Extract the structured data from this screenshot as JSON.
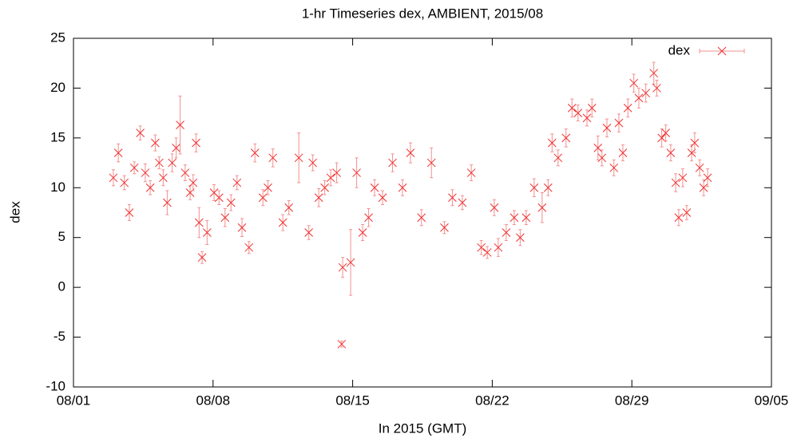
{
  "chart_data": {
    "type": "scatter",
    "title": "1-hr Timeseries dex, AMBIENT, 2015/08",
    "xlabel": "In 2015 (GMT)",
    "ylabel": "dex",
    "legend": "top-right",
    "xlim": [
      1,
      36
    ],
    "xticks": [
      {
        "value": 1,
        "label": "08/01"
      },
      {
        "value": 8,
        "label": "08/08"
      },
      {
        "value": 15,
        "label": "08/15"
      },
      {
        "value": 22,
        "label": "08/22"
      },
      {
        "value": 29,
        "label": "08/29"
      },
      {
        "value": 36,
        "label": "09/05"
      }
    ],
    "ylim": [
      -10,
      25
    ],
    "yticks": [
      -10,
      -5,
      0,
      5,
      10,
      15,
      20,
      25
    ],
    "series": [
      {
        "name": "dex",
        "color": "#f03030",
        "error_color": "#f39090",
        "x": [
          3.0,
          3.25,
          3.55,
          3.8,
          4.05,
          4.35,
          4.6,
          4.85,
          5.1,
          5.3,
          5.5,
          5.7,
          5.95,
          6.15,
          6.35,
          6.6,
          6.85,
          7.0,
          7.15,
          7.3,
          7.45,
          7.7,
          8.05,
          8.3,
          8.6,
          8.9,
          9.2,
          9.45,
          9.8,
          10.1,
          10.5,
          10.75,
          11.0,
          11.5,
          11.8,
          12.3,
          12.8,
          13.0,
          13.3,
          13.6,
          13.9,
          14.2,
          14.45,
          14.5,
          14.9,
          15.2,
          15.5,
          15.8,
          16.1,
          16.5,
          17.0,
          17.5,
          17.9,
          18.45,
          18.95,
          19.6,
          20.0,
          20.5,
          20.95,
          21.45,
          21.75,
          22.1,
          22.3,
          22.7,
          23.1,
          23.4,
          23.7,
          24.1,
          24.5,
          24.8,
          25.0,
          25.3,
          25.7,
          26.0,
          26.3,
          26.75,
          27.0,
          27.3,
          27.5,
          27.75,
          28.1,
          28.35,
          28.55,
          28.8,
          29.1,
          29.35,
          29.7,
          30.1,
          30.25,
          30.5,
          30.7,
          30.95,
          31.2,
          31.35,
          31.55,
          31.75,
          32.0,
          32.15,
          32.4,
          32.6,
          32.8
        ],
        "values": [
          11,
          13.5,
          10.5,
          7.5,
          12,
          15.5,
          11.5,
          10,
          14.5,
          12.5,
          11,
          8.5,
          12.5,
          14,
          16.3,
          11.5,
          9.5,
          10.5,
          14.5,
          6.5,
          3,
          5.5,
          9.5,
          9,
          7,
          8.5,
          10.5,
          6,
          4,
          13.5,
          9,
          10,
          13,
          6.5,
          8,
          13,
          5.5,
          12.5,
          9,
          10,
          11,
          11.5,
          -5.7,
          2,
          2.5,
          11.5,
          5.5,
          7,
          10,
          9,
          12.5,
          10,
          13.5,
          7,
          12.5,
          6,
          9,
          8.5,
          11.5,
          4,
          3.5,
          8,
          4,
          5.5,
          7,
          5,
          7,
          10,
          8,
          10,
          14.5,
          13,
          15,
          18,
          17.5,
          17,
          18,
          14,
          13,
          16,
          12,
          16.5,
          13.5,
          18,
          20.5,
          19,
          19.5,
          21.5,
          20,
          15,
          15.5,
          13.5,
          10.5,
          7,
          11,
          7.5,
          13.5,
          14.5,
          12,
          10,
          11
        ],
        "errors": [
          0.8,
          0.9,
          0.7,
          0.8,
          0.6,
          0.7,
          0.9,
          0.7,
          0.8,
          0.6,
          0.8,
          1.2,
          0.9,
          1.0,
          2.9,
          0.8,
          0.7,
          0.8,
          0.9,
          1.5,
          0.6,
          1.2,
          0.8,
          0.7,
          0.9,
          0.8,
          0.7,
          0.9,
          0.6,
          0.9,
          0.8,
          0.7,
          0.9,
          0.8,
          0.7,
          2.5,
          0.7,
          0.8,
          0.9,
          0.7,
          0.8,
          1.0,
          0.3,
          1.0,
          3.3,
          1.5,
          0.8,
          0.9,
          0.8,
          0.7,
          0.9,
          0.8,
          1.0,
          0.8,
          1.5,
          0.6,
          0.8,
          0.7,
          0.8,
          0.7,
          0.6,
          0.8,
          0.9,
          0.8,
          0.7,
          0.8,
          0.7,
          0.9,
          1.5,
          0.8,
          0.9,
          0.8,
          0.9,
          0.9,
          0.8,
          0.8,
          0.9,
          1.2,
          0.8,
          0.9,
          0.8,
          0.9,
          0.8,
          0.9,
          0.9,
          1.0,
          0.9,
          1.1,
          0.8,
          0.9,
          0.8,
          0.8,
          0.9,
          0.8,
          0.9,
          0.7,
          0.8,
          1.0,
          0.8,
          0.8,
          0.9
        ]
      }
    ]
  }
}
